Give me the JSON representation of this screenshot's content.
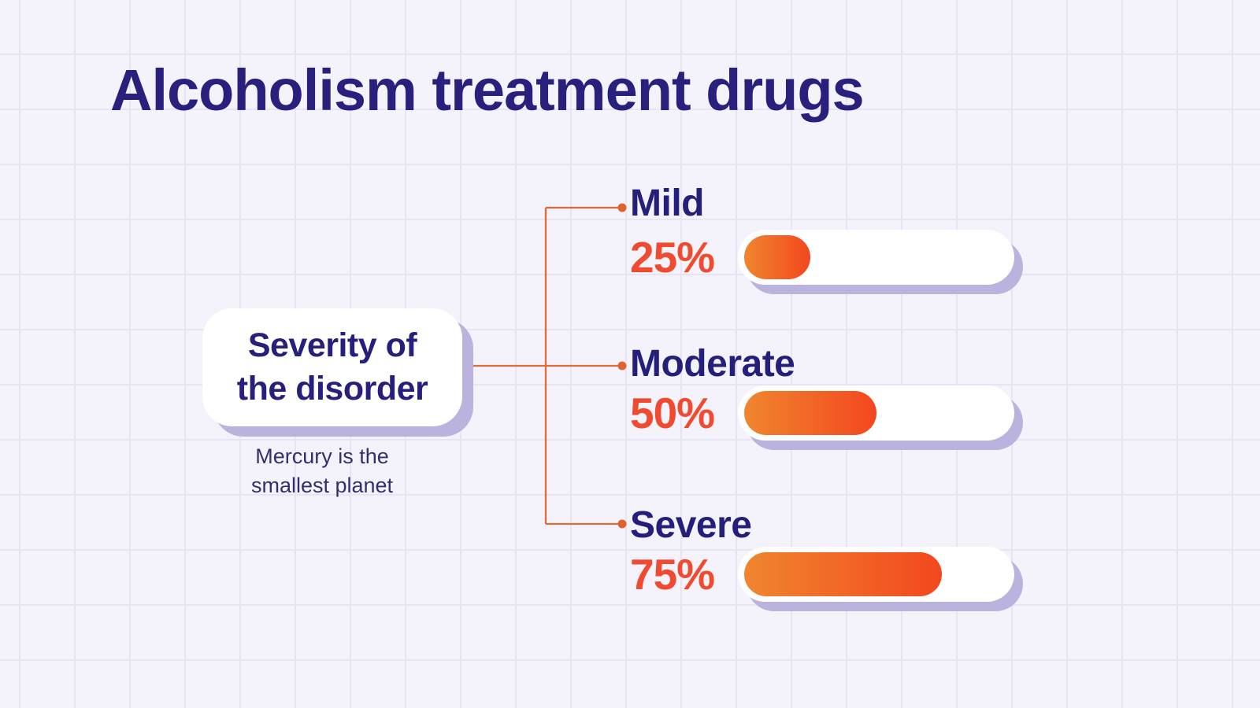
{
  "title": "Alcoholism treatment drugs",
  "card": {
    "line1": "Severity of",
    "line2": "the disorder"
  },
  "caption": {
    "line1": "Mercury is the",
    "line2": "smallest planet"
  },
  "rows": [
    {
      "label": "Mild",
      "percent": "25%",
      "value": 25
    },
    {
      "label": "Moderate",
      "percent": "50%",
      "value": 50
    },
    {
      "label": "Severe",
      "percent": "75%",
      "value": 75
    }
  ],
  "chart_data": {
    "type": "bar",
    "orientation": "horizontal",
    "title": "Alcoholism treatment drugs",
    "group_label": "Severity of the disorder",
    "caption": "Mercury is the smallest planet",
    "categories": [
      "Mild",
      "Moderate",
      "Severe"
    ],
    "values": [
      25,
      50,
      75
    ],
    "value_labels": [
      "25%",
      "50%",
      "75%"
    ],
    "unit": "%",
    "xlim": [
      0,
      100
    ],
    "grid": true,
    "legend_position": "none"
  },
  "colors": {
    "background": "#f4f2fa",
    "grid_line": "#e8e4f3",
    "navy_text": "#29207e",
    "accent_red": "#f04b30",
    "bar_gradient_start": "#f0862e",
    "bar_gradient_end": "#f3471f",
    "connector_line": "#df6b3b",
    "shadow_lavender": "#b9b3de",
    "card_background": "#ffffff",
    "track_background": "#ffffff"
  }
}
